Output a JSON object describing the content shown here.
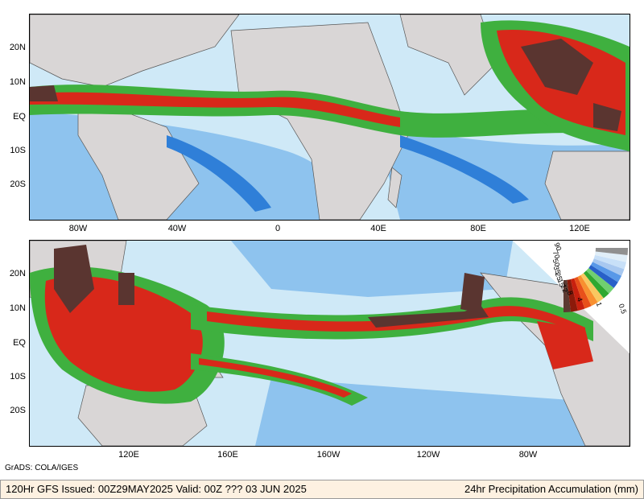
{
  "top_panel": {
    "lat_labels": [
      "20N",
      "10N",
      "EQ",
      "10S",
      "20S"
    ],
    "lon_labels": [
      "80W",
      "40W",
      "0",
      "40E",
      "80E",
      "120E"
    ]
  },
  "bottom_panel": {
    "lat_labels": [
      "20N",
      "10N",
      "EQ",
      "10S",
      "20S"
    ],
    "lon_labels": [
      "120E",
      "160E",
      "160W",
      "120W",
      "80W"
    ]
  },
  "legend": {
    "labels": [
      "90",
      "70",
      "50",
      "35",
      "25",
      "15",
      "12",
      "8",
      "4",
      "1",
      "0.5"
    ],
    "colors": [
      "#5c3a32",
      "#8c1a0a",
      "#c8200e",
      "#e8501a",
      "#f89030",
      "#f8c860",
      "#30a830",
      "#70d070",
      "#2860c8",
      "#5898e8",
      "#a8c8f0",
      "#c8e0f8",
      "#e0eef8",
      "#909090"
    ]
  },
  "credit": "GrADS: COLA/IGES",
  "footer": {
    "left": "120Hr GFS Issued: 00Z29MAY2025 Valid: 00Z ??? 03 JUN 2025",
    "right": "24hr Precipitation Accumulation (mm)"
  },
  "colors": {
    "ocean": "#cfe9f7",
    "land": "#d9d6d6",
    "light_rain": "#7fb3e8",
    "moderate_rain": "#2f7fd8",
    "green": "#3fb03f",
    "heavy": "#d8281a",
    "extreme": "#5a3530"
  }
}
